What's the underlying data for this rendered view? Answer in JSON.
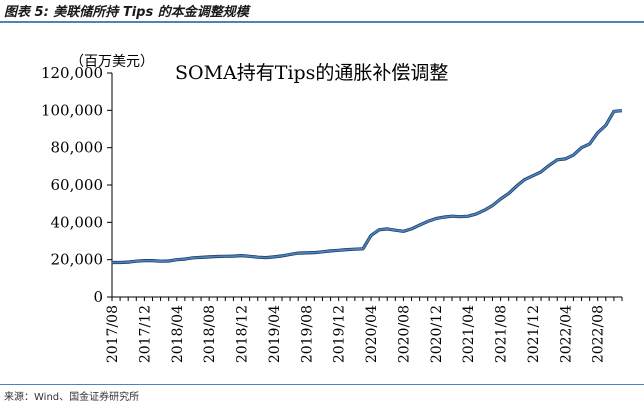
{
  "figure_title": "图表 5: 美联储所持 Tips 的本金调整规模",
  "source": "来源：Wind、国金证券研究所",
  "colors": {
    "line": "#4f81bd",
    "line_dark": "#17375e",
    "rule": "#4f81bd"
  },
  "chart_data": {
    "type": "line",
    "title": "SOMA持有Tips的通胀补偿调整",
    "unit_label": "（百万美元）",
    "ylim": [
      0,
      120000
    ],
    "yticks": [
      0,
      20000,
      40000,
      60000,
      80000,
      100000,
      120000
    ],
    "ytick_labels": [
      "0",
      "20,000",
      "40,000",
      "60,000",
      "80,000",
      "100,000",
      "120,000"
    ],
    "xlim": [
      "2017-08",
      "2022-11"
    ],
    "xtick_labels": [
      "2017/08",
      "2017/12",
      "2018/04",
      "2018/08",
      "2018/12",
      "2019/04",
      "2019/08",
      "2019/12",
      "2020/04",
      "2020/08",
      "2020/12",
      "2021/04",
      "2021/08",
      "2021/12",
      "2022/04",
      "2022/08"
    ],
    "grid": false,
    "series": [
      {
        "x": [
          "2017-08",
          "2017-09",
          "2017-10",
          "2017-11",
          "2017-12",
          "2018-01",
          "2018-02",
          "2018-03",
          "2018-04",
          "2018-05",
          "2018-06",
          "2018-07",
          "2018-08",
          "2018-09",
          "2018-10",
          "2018-11",
          "2018-12",
          "2019-01",
          "2019-02",
          "2019-03",
          "2019-04",
          "2019-05",
          "2019-06",
          "2019-07",
          "2019-08",
          "2019-09",
          "2019-10",
          "2019-11",
          "2019-12",
          "2020-01",
          "2020-02",
          "2020-03",
          "2020-04",
          "2020-05",
          "2020-06",
          "2020-07",
          "2020-08",
          "2020-09",
          "2020-10",
          "2020-11",
          "2020-12",
          "2021-01",
          "2021-02",
          "2021-03",
          "2021-04",
          "2021-05",
          "2021-06",
          "2021-07",
          "2021-08",
          "2021-09",
          "2021-10",
          "2021-11",
          "2021-12",
          "2022-01",
          "2022-02",
          "2022-03",
          "2022-04",
          "2022-05",
          "2022-06",
          "2022-07",
          "2022-08",
          "2022-09",
          "2022-10",
          "2022-11"
        ],
        "values": [
          18500,
          18500,
          18700,
          19200,
          19500,
          19500,
          19200,
          19300,
          20000,
          20300,
          21000,
          21200,
          21500,
          21700,
          21800,
          21900,
          22200,
          21800,
          21300,
          21100,
          21500,
          22000,
          22800,
          23500,
          23600,
          23800,
          24200,
          24700,
          25000,
          25400,
          25600,
          25800,
          33000,
          36000,
          36500,
          35800,
          35200,
          36500,
          38500,
          40500,
          42000,
          42800,
          43300,
          43000,
          43300,
          44500,
          46500,
          49000,
          52500,
          55500,
          59500,
          63000,
          65000,
          67000,
          70500,
          73500,
          74000,
          76000,
          80000,
          82000,
          88000,
          92000,
          99500,
          99800
        ]
      }
    ]
  }
}
